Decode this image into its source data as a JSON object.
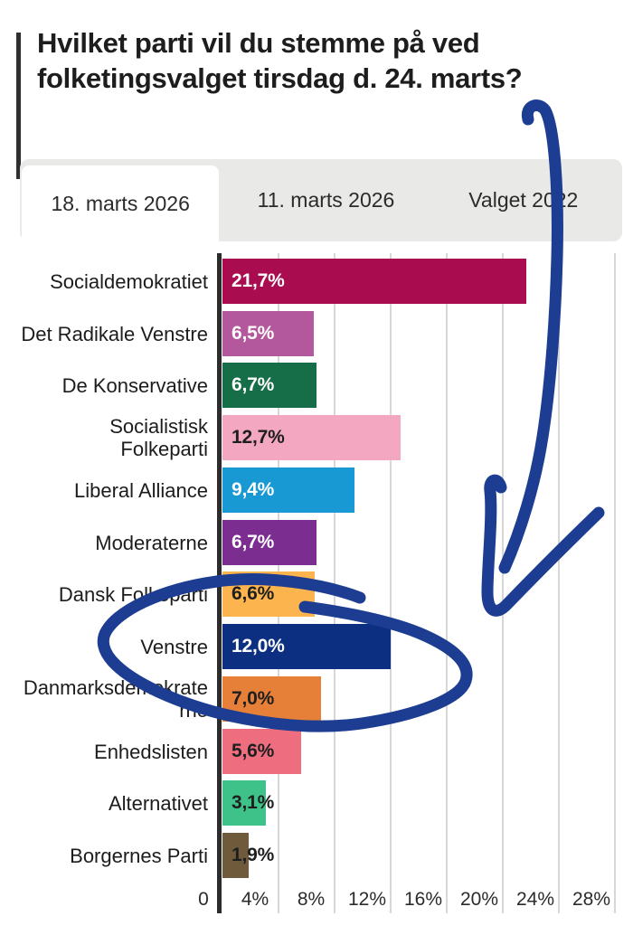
{
  "header": {
    "title": "Hvilket parti vil du stemme på ved folketingsvalget tirsdag d. 24. marts?"
  },
  "tabs": [
    {
      "label": "18. marts 2026",
      "active": true
    },
    {
      "label": "11. marts 2026",
      "active": false
    },
    {
      "label": "Valget 2022",
      "active": false
    }
  ],
  "chart_data": {
    "type": "bar",
    "orientation": "horizontal",
    "title": "Hvilket parti vil du stemme på ved folketingsvalget tirsdag d. 24. marts?",
    "xlabel": "",
    "ylabel": "",
    "xlim": [
      0,
      29
    ],
    "grid": true,
    "legend": false,
    "x_ticks": [
      {
        "value": 0,
        "label": "0"
      },
      {
        "value": 4,
        "label": "4%"
      },
      {
        "value": 8,
        "label": "8%"
      },
      {
        "value": 12,
        "label": "12%"
      },
      {
        "value": 16,
        "label": "16%"
      },
      {
        "value": 20,
        "label": "20%"
      },
      {
        "value": 24,
        "label": "24%"
      },
      {
        "value": 28,
        "label": "28%"
      }
    ],
    "bars": [
      {
        "party": "Socialdemokratiet",
        "label_lines": [
          "Socialdemokratiet"
        ],
        "value": 21.7,
        "display": "21,7%",
        "color": "#a90d4f",
        "value_color": "#ffffff"
      },
      {
        "party": "Det Radikale Venstre",
        "label_lines": [
          "Det Radikale Venstre"
        ],
        "value": 6.5,
        "display": "6,5%",
        "color": "#b3589c",
        "value_color": "#ffffff"
      },
      {
        "party": "De Konservative",
        "label_lines": [
          "De Konservative"
        ],
        "value": 6.7,
        "display": "6,7%",
        "color": "#156e47",
        "value_color": "#ffffff"
      },
      {
        "party": "Socialistisk Folkeparti",
        "label_lines": [
          "Socialistisk",
          "Folkeparti"
        ],
        "value": 12.7,
        "display": "12,7%",
        "color": "#f3a7c1",
        "value_color": "#1e1e1e"
      },
      {
        "party": "Liberal Alliance",
        "label_lines": [
          "Liberal Alliance"
        ],
        "value": 9.4,
        "display": "9,4%",
        "color": "#1899d4",
        "value_color": "#ffffff"
      },
      {
        "party": "Moderaterne",
        "label_lines": [
          "Moderaterne"
        ],
        "value": 6.7,
        "display": "6,7%",
        "color": "#7b2e8f",
        "value_color": "#ffffff"
      },
      {
        "party": "Dansk Folkeparti",
        "label_lines": [
          "Dansk Folkeparti"
        ],
        "value": 6.6,
        "display": "6,6%",
        "color": "#fcb44e",
        "value_color": "#1e1e1e"
      },
      {
        "party": "Venstre",
        "label_lines": [
          "Venstre"
        ],
        "value": 12.0,
        "display": "12,0%",
        "color": "#0d2f82",
        "value_color": "#ffffff"
      },
      {
        "party": "Danmarksdemokraterne",
        "label_lines": [
          "Danmarksdemokrate",
          "rne"
        ],
        "value": 7.0,
        "display": "7,0%",
        "color": "#e67f38",
        "value_color": "#1e1e1e"
      },
      {
        "party": "Enhedslisten",
        "label_lines": [
          "Enhedslisten"
        ],
        "value": 5.6,
        "display": "5,6%",
        "color": "#ee6e80",
        "value_color": "#1e1e1e"
      },
      {
        "party": "Alternativet",
        "label_lines": [
          "Alternativet"
        ],
        "value": 3.1,
        "display": "3,1%",
        "color": "#3ec289",
        "value_color": "#1e1e1e"
      },
      {
        "party": "Borgernes Parti",
        "label_lines": [
          "Borgernes Parti"
        ],
        "value": 1.9,
        "display": "1,9%",
        "color": "#6f5a3b",
        "value_color": "#1e1e1e"
      }
    ]
  },
  "annotation": {
    "ink_color": "#1c3d92",
    "circled_party": "Venstre",
    "shapes": [
      "down-arrow",
      "circle-around-venstre-row"
    ]
  }
}
